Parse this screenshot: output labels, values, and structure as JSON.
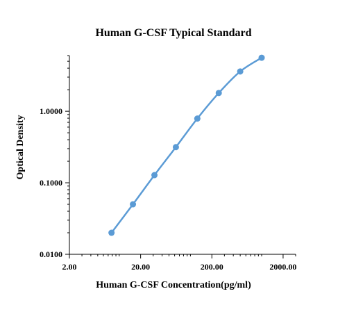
{
  "chart_data": {
    "type": "scatter",
    "title": "Human G-CSF Typical Standard",
    "xlabel": "Human G-CSF Concentration(pg/ml)",
    "ylabel": "Optical Density",
    "x_scale": "log",
    "y_scale": "log",
    "xlim": [
      2,
      3000
    ],
    "ylim": [
      0.01,
      6
    ],
    "x_ticks": [
      2,
      20,
      200,
      2000
    ],
    "x_tick_labels": [
      "2.00",
      "20.00",
      "200.00",
      "2000.00"
    ],
    "y_ticks": [
      0.01,
      0.1,
      1
    ],
    "y_tick_labels": [
      "0.0100",
      "0.1000",
      "1.0000"
    ],
    "grid": false,
    "legend": "none",
    "line": "smooth",
    "color": "#5b9bd5",
    "series": [
      {
        "x": [
          7.8,
          15.6,
          31.25,
          62.5,
          125,
          250,
          500,
          1000
        ],
        "y": [
          0.02,
          0.05,
          0.128,
          0.315,
          0.79,
          1.8,
          3.6,
          5.6
        ]
      }
    ]
  }
}
